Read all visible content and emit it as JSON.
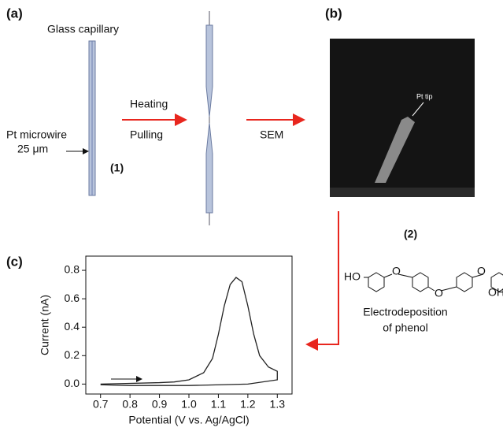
{
  "panels": {
    "a": "(a)",
    "b": "(b)",
    "c": "(c)"
  },
  "step_a": {
    "capillary": "Glass capillary",
    "wire": "Pt microwire",
    "wire_size": "25 μm",
    "heating": "Heating",
    "pulling": "Pulling",
    "step": "(1)",
    "sem": "SEM"
  },
  "step_b": {
    "tip": "Pt tip",
    "step": "(2)"
  },
  "structure": {
    "left_group": "HO",
    "right_group": "OH",
    "ether": "O",
    "caption": [
      "Electrodeposition",
      "of phenol"
    ]
  },
  "chart_data": {
    "type": "line",
    "x_label": "Potential (V vs. Ag/AgCl)",
    "y_label": "Current (nA)",
    "x": [
      0.7,
      0.8,
      0.9,
      0.95,
      1.0,
      1.05,
      1.08,
      1.1,
      1.12,
      1.14,
      1.16,
      1.18,
      1.2,
      1.22,
      1.24,
      1.27,
      1.3,
      1.3,
      1.2,
      1.0,
      0.8,
      0.7
    ],
    "values": [
      0.0,
      0.005,
      0.01,
      0.015,
      0.03,
      0.08,
      0.18,
      0.35,
      0.55,
      0.7,
      0.75,
      0.72,
      0.55,
      0.35,
      0.2,
      0.12,
      0.09,
      0.03,
      0.0,
      -0.01,
      -0.01,
      -0.005
    ],
    "color": "#222222",
    "xlim": [
      0.65,
      1.35
    ],
    "ylim": [
      -0.07,
      0.9
    ],
    "xticks": [
      0.7,
      0.8,
      0.9,
      {
        "value": 1,
        "label": "1.0"
      },
      1.1,
      1.2,
      1.3
    ],
    "yticks": [
      {
        "value": 0,
        "label": "0.0"
      },
      0.2,
      0.4,
      0.6,
      0.8
    ]
  }
}
